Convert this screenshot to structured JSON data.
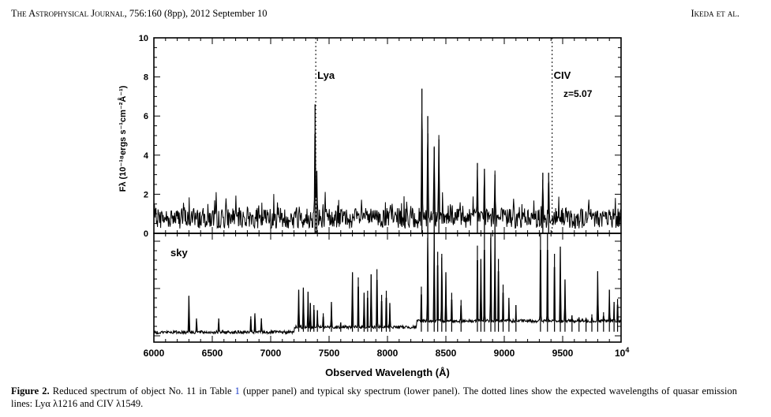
{
  "running_head": {
    "journal": "The Astrophysical Journal",
    "citation": ", 756:160 (8pp), 2012 September 10",
    "authors": "Ikeda et al."
  },
  "caption": {
    "label": "Figure 2.",
    "text_1": " Reduced spectrum of object No. 11 in Table ",
    "table_ref": "1",
    "text_2": " (upper panel) and typical sky spectrum (lower panel). The dotted lines show the expected wavelengths of quasar emission lines: Lyα λ1216 and C",
    "civ_small": "IV",
    "text_3": " λ1549."
  },
  "chart_data": {
    "type": "line",
    "xlabel": "Observed Wavelength (Å)",
    "xlim": [
      6000,
      10000
    ],
    "x_ticks": [
      "6000",
      "6500",
      "7000",
      "7500",
      "8000",
      "8500",
      "9000",
      "9500"
    ],
    "x_end_label": {
      "base": "10",
      "exp": "4"
    },
    "upper_panel": {
      "ylabel": "Fλ (10⁻¹⁸ergs s⁻¹cm⁻²Å⁻¹)",
      "ylim": [
        0,
        10
      ],
      "y_ticks": [
        "0",
        "2",
        "4",
        "6",
        "8",
        "10"
      ],
      "redshift_label": "z=5.07",
      "emission_lines": [
        {
          "name": "Lya",
          "wavelength": 7386
        },
        {
          "name": "CIV",
          "wavelength": 9410
        }
      ],
      "features": [
        {
          "x": 7380,
          "y": 6.6
        },
        {
          "x": 7395,
          "y": 3.2
        },
        {
          "x": 8295,
          "y": 7.4
        },
        {
          "x": 8345,
          "y": 6.0
        },
        {
          "x": 8400,
          "y": 4.4
        },
        {
          "x": 8440,
          "y": 4.8
        },
        {
          "x": 8770,
          "y": 3.6
        },
        {
          "x": 8830,
          "y": 3.3
        },
        {
          "x": 8920,
          "y": 3.0
        },
        {
          "x": 9330,
          "y": 3.1
        },
        {
          "x": 9380,
          "y": 3.1
        }
      ]
    },
    "lower_panel": {
      "label": "sky",
      "ylim": [
        0,
        1
      ],
      "lines": [
        {
          "x": 6300,
          "y": 0.39
        },
        {
          "x": 6365,
          "y": 0.17
        },
        {
          "x": 6555,
          "y": 0.17
        },
        {
          "x": 6830,
          "y": 0.19
        },
        {
          "x": 6865,
          "y": 0.22
        },
        {
          "x": 6920,
          "y": 0.17
        },
        {
          "x": 7240,
          "y": 0.45
        },
        {
          "x": 7280,
          "y": 0.47
        },
        {
          "x": 7320,
          "y": 0.43
        },
        {
          "x": 7340,
          "y": 0.32
        },
        {
          "x": 7370,
          "y": 0.3
        },
        {
          "x": 7400,
          "y": 0.25
        },
        {
          "x": 7450,
          "y": 0.22
        },
        {
          "x": 7520,
          "y": 0.33
        },
        {
          "x": 7600,
          "y": 0.13
        },
        {
          "x": 7700,
          "y": 0.62
        },
        {
          "x": 7750,
          "y": 0.57
        },
        {
          "x": 7800,
          "y": 0.42
        },
        {
          "x": 7830,
          "y": 0.44
        },
        {
          "x": 7860,
          "y": 0.6
        },
        {
          "x": 7910,
          "y": 0.65
        },
        {
          "x": 7950,
          "y": 0.4
        },
        {
          "x": 7990,
          "y": 0.44
        },
        {
          "x": 8020,
          "y": 0.32
        },
        {
          "x": 8290,
          "y": 0.48
        },
        {
          "x": 8345,
          "y": 1.0
        },
        {
          "x": 8400,
          "y": 1.0
        },
        {
          "x": 8430,
          "y": 0.82
        },
        {
          "x": 8465,
          "y": 0.8
        },
        {
          "x": 8500,
          "y": 0.62
        },
        {
          "x": 8550,
          "y": 0.42
        },
        {
          "x": 8630,
          "y": 0.35
        },
        {
          "x": 8770,
          "y": 0.88
        },
        {
          "x": 8800,
          "y": 0.75
        },
        {
          "x": 8830,
          "y": 1.0
        },
        {
          "x": 8885,
          "y": 1.0
        },
        {
          "x": 8920,
          "y": 1.0
        },
        {
          "x": 8950,
          "y": 0.75
        },
        {
          "x": 8990,
          "y": 0.5
        },
        {
          "x": 9040,
          "y": 0.37
        },
        {
          "x": 9100,
          "y": 0.3
        },
        {
          "x": 9310,
          "y": 1.0
        },
        {
          "x": 9370,
          "y": 1.0
        },
        {
          "x": 9430,
          "y": 0.8
        },
        {
          "x": 9480,
          "y": 0.87
        },
        {
          "x": 9520,
          "y": 0.55
        },
        {
          "x": 9580,
          "y": 0.2
        },
        {
          "x": 9640,
          "y": 0.18
        },
        {
          "x": 9700,
          "y": 0.17
        },
        {
          "x": 9750,
          "y": 0.21
        },
        {
          "x": 9800,
          "y": 0.63
        },
        {
          "x": 9850,
          "y": 0.23
        },
        {
          "x": 9900,
          "y": 0.45
        },
        {
          "x": 9940,
          "y": 0.33
        },
        {
          "x": 9970,
          "y": 0.36
        }
      ]
    }
  }
}
